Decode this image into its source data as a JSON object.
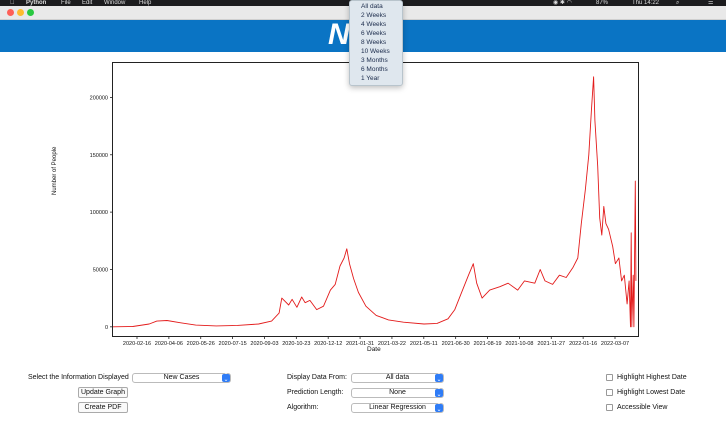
{
  "menubar": {
    "apple": "",
    "items": [
      "Python",
      "File",
      "Edit",
      "Window",
      "Help"
    ],
    "battery": "87%",
    "time": "Thu 14:22"
  },
  "window": {
    "title": "NHS"
  },
  "banner": {
    "logo": "NHS",
    "color": "#0a74c4"
  },
  "chart_data": {
    "type": "line",
    "xlabel": "Date",
    "ylabel": "Number of People",
    "ylim": [
      -8000,
      230000
    ],
    "yticks": [
      0,
      50000,
      100000,
      150000,
      200000
    ],
    "xtick_labels": [
      "2020-02-16",
      "2020-04-06",
      "2020-05-26",
      "2020-07-15",
      "2020-09-03",
      "2020-10-23",
      "2020-12-12",
      "2021-01-31",
      "2021-03-22",
      "2021-05-11",
      "2021-06-30",
      "2021-08-19",
      "2021-10-08",
      "2021-11-27",
      "2022-01-16",
      "2022-03-07"
    ],
    "x_range": [
      "2020-02-01",
      "2022-03-10"
    ],
    "series": [
      {
        "color": "#e31b1b",
        "points": [
          [
            "2020-02-01",
            0
          ],
          [
            "2020-03-01",
            300
          ],
          [
            "2020-03-25",
            2500
          ],
          [
            "2020-04-05",
            5000
          ],
          [
            "2020-04-20",
            5500
          ],
          [
            "2020-05-10",
            3500
          ],
          [
            "2020-06-01",
            1500
          ],
          [
            "2020-07-01",
            800
          ],
          [
            "2020-08-01",
            1200
          ],
          [
            "2020-09-01",
            2500
          ],
          [
            "2020-09-20",
            5000
          ],
          [
            "2020-10-01",
            12000
          ],
          [
            "2020-10-05",
            25000
          ],
          [
            "2020-10-15",
            19000
          ],
          [
            "2020-10-20",
            24000
          ],
          [
            "2020-10-27",
            17000
          ],
          [
            "2020-11-03",
            26000
          ],
          [
            "2020-11-08",
            21000
          ],
          [
            "2020-11-15",
            23000
          ],
          [
            "2020-11-25",
            15000
          ],
          [
            "2020-12-05",
            18000
          ],
          [
            "2020-12-15",
            32000
          ],
          [
            "2020-12-22",
            37000
          ],
          [
            "2020-12-29",
            53000
          ],
          [
            "2021-01-04",
            60000
          ],
          [
            "2021-01-08",
            68000
          ],
          [
            "2021-01-12",
            55000
          ],
          [
            "2021-01-18",
            42000
          ],
          [
            "2021-01-25",
            30000
          ],
          [
            "2021-02-05",
            18000
          ],
          [
            "2021-02-20",
            10000
          ],
          [
            "2021-03-10",
            6000
          ],
          [
            "2021-04-01",
            4000
          ],
          [
            "2021-05-01",
            2500
          ],
          [
            "2021-05-20",
            3000
          ],
          [
            "2021-06-05",
            7000
          ],
          [
            "2021-06-15",
            15000
          ],
          [
            "2021-06-25",
            30000
          ],
          [
            "2021-07-05",
            45000
          ],
          [
            "2021-07-12",
            55000
          ],
          [
            "2021-07-17",
            38000
          ],
          [
            "2021-07-25",
            25000
          ],
          [
            "2021-08-05",
            32000
          ],
          [
            "2021-08-20",
            35000
          ],
          [
            "2021-09-01",
            38000
          ],
          [
            "2021-09-15",
            32000
          ],
          [
            "2021-09-25",
            40000
          ],
          [
            "2021-10-10",
            38000
          ],
          [
            "2021-10-18",
            50000
          ],
          [
            "2021-10-25",
            40000
          ],
          [
            "2021-11-05",
            37000
          ],
          [
            "2021-11-15",
            45000
          ],
          [
            "2021-11-25",
            43000
          ],
          [
            "2021-12-05",
            52000
          ],
          [
            "2021-12-12",
            60000
          ],
          [
            "2021-12-17",
            90000
          ],
          [
            "2021-12-23",
            120000
          ],
          [
            "2021-12-28",
            150000
          ],
          [
            "2022-01-01",
            190000
          ],
          [
            "2022-01-04",
            218000
          ],
          [
            "2022-01-06",
            180000
          ],
          [
            "2022-01-10",
            140000
          ],
          [
            "2022-01-13",
            95000
          ],
          [
            "2022-01-16",
            80000
          ],
          [
            "2022-01-19",
            105000
          ],
          [
            "2022-01-22",
            90000
          ],
          [
            "2022-01-26",
            85000
          ],
          [
            "2022-02-01",
            70000
          ],
          [
            "2022-02-05",
            55000
          ],
          [
            "2022-02-10",
            60000
          ],
          [
            "2022-02-14",
            40000
          ],
          [
            "2022-02-18",
            45000
          ],
          [
            "2022-02-22",
            20000
          ],
          [
            "2022-02-25",
            40000
          ],
          [
            "2022-02-27",
            0
          ],
          [
            "2022-02-28",
            82000
          ],
          [
            "2022-03-01",
            0
          ],
          [
            "2022-03-03",
            45000
          ],
          [
            "2022-03-04",
            0
          ],
          [
            "2022-03-06",
            127000
          ],
          [
            "2022-03-07",
            40000
          ]
        ]
      }
    ]
  },
  "controls": {
    "info_label": "Select the Information Displayed",
    "info_value": "New Cases",
    "update_button": "Update Graph",
    "pdf_button": "Create PDF",
    "from_label": "Display Data From:",
    "from_value": "All data",
    "pred_label": "Prediction Length:",
    "pred_value": "None",
    "algo_label": "Algorithm:",
    "algo_value": "Linear Regression",
    "cb_highest": "Highlight Highest Date",
    "cb_lowest": "Highlight Lowest Date",
    "cb_access": "Accessible View"
  },
  "dropdown": {
    "options": [
      "All data",
      "2 Weeks",
      "4 Weeks",
      "6 Weeks",
      "8 Weeks",
      "10 Weeks",
      "3 Months",
      "6 Months",
      "1 Year"
    ]
  }
}
